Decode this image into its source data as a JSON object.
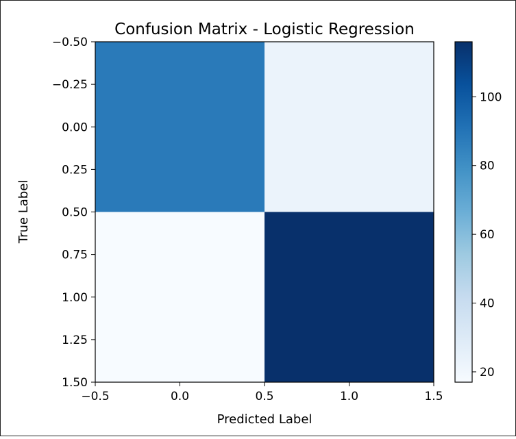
{
  "chart_data": {
    "type": "heatmap",
    "title": "Confusion Matrix - Logistic Regression",
    "xlabel": "Predicted Label",
    "ylabel": "True Label",
    "matrix": [
      [
        88,
        23
      ],
      [
        17,
        116
      ]
    ],
    "xlim": [
      -0.5,
      1.5
    ],
    "ylim": [
      1.5,
      -0.5
    ],
    "xticks": [
      -0.5,
      0.0,
      0.5,
      1.0,
      1.5
    ],
    "xtick_labels": [
      "−0.5",
      "0.0",
      "0.5",
      "1.0",
      "1.5"
    ],
    "yticks": [
      -0.5,
      -0.25,
      0.0,
      0.25,
      0.5,
      0.75,
      1.0,
      1.25,
      1.5
    ],
    "ytick_labels": [
      "−0.50",
      "−0.25",
      "0.00",
      "0.25",
      "0.50",
      "0.75",
      "1.00",
      "1.25",
      "1.50"
    ],
    "colorbar": {
      "colormap": "Blues",
      "range": [
        17,
        116
      ],
      "ticks": [
        20,
        40,
        60,
        80,
        100
      ],
      "tick_labels": [
        "20",
        "40",
        "60",
        "80",
        "100"
      ]
    },
    "colors": {
      "blues_stops": [
        "#f7fbff",
        "#deebf7",
        "#c6dbef",
        "#9ecae1",
        "#6baed6",
        "#4292c6",
        "#2171b5",
        "#08519c",
        "#08306b"
      ]
    }
  }
}
